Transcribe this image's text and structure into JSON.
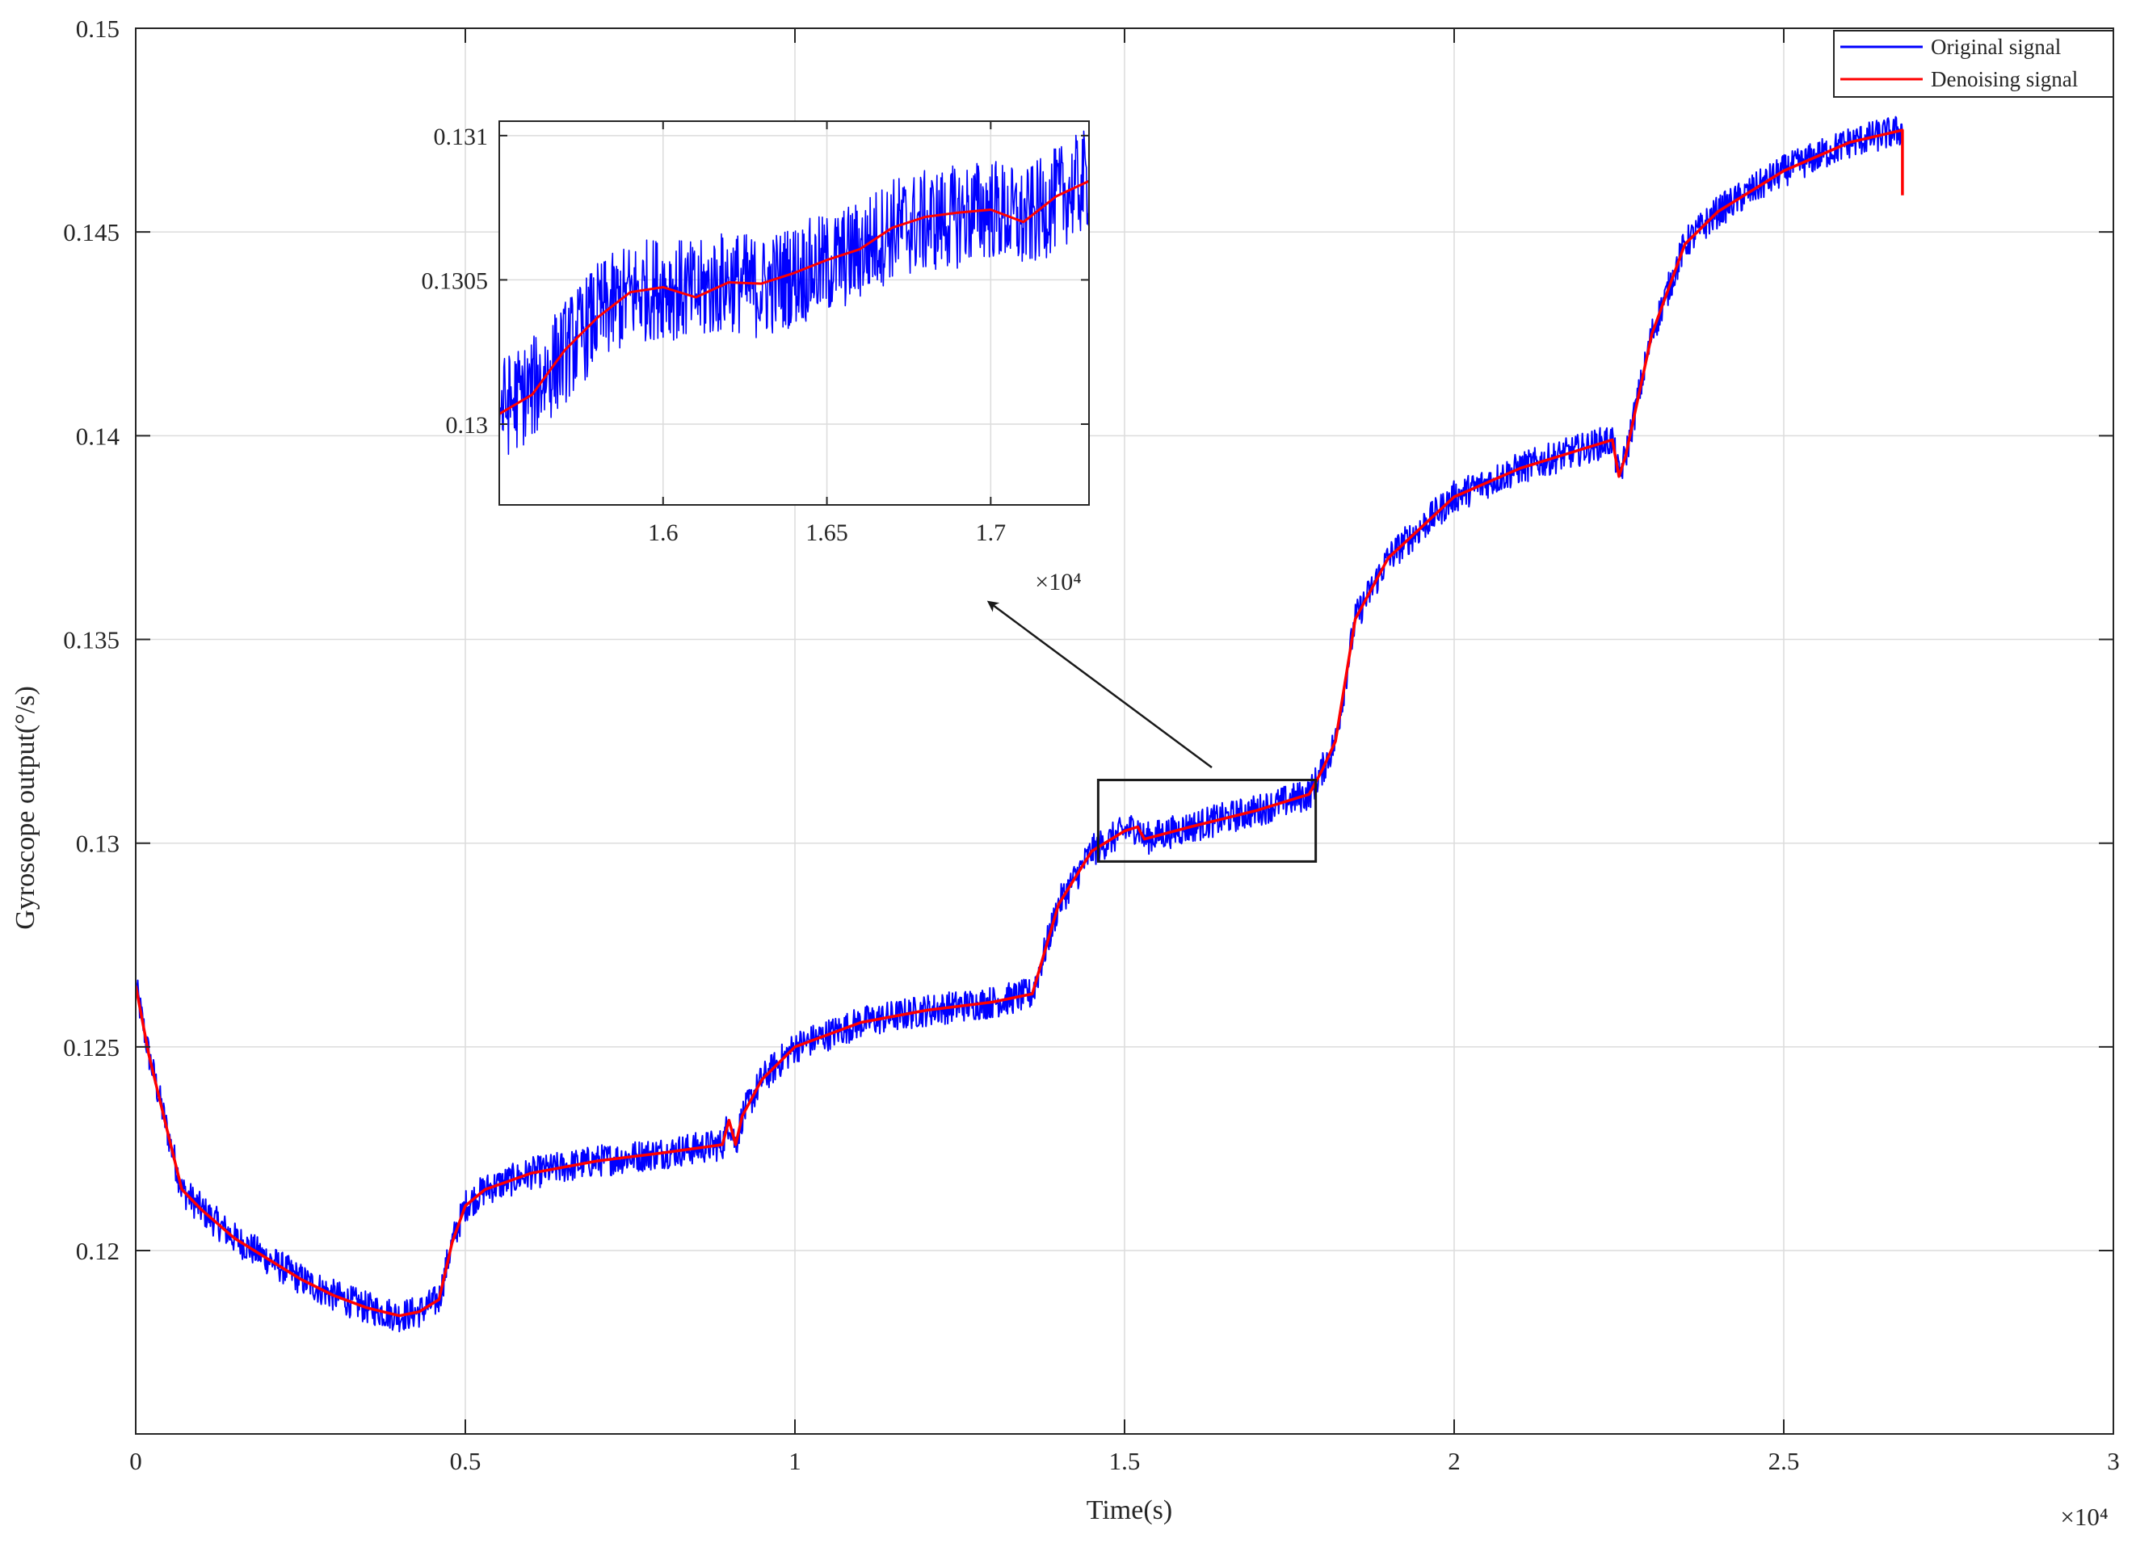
{
  "colors": {
    "original": "#0000ff",
    "denoised": "#ff0000",
    "axes": "#262626",
    "grid": "#dcdcdc",
    "box": "#1a1a1a"
  },
  "chart_data": [
    {
      "type": "line",
      "title": "",
      "xlabel": "Time(s)",
      "ylabel": "Gyroscope output(°/s)",
      "x_multiplier_label": "×10⁴",
      "xlim": [
        0,
        30000
      ],
      "ylim": [
        0.1155,
        0.15
      ],
      "x_ticks": [
        0,
        5000,
        10000,
        15000,
        20000,
        25000,
        30000
      ],
      "x_tick_labels": [
        "0",
        "0.5",
        "1",
        "1.5",
        "2",
        "2.5",
        "3"
      ],
      "y_ticks": [
        0.12,
        0.125,
        0.13,
        0.135,
        0.14,
        0.145,
        0.15
      ],
      "y_tick_labels": [
        "0.12",
        "0.125",
        "0.13",
        "0.135",
        "0.14",
        "0.145",
        "0.15"
      ],
      "grid": true,
      "legend": "top-right",
      "series": [
        {
          "name": "Original signal",
          "color": "#0000ff",
          "noise_amplitude": 0.0004,
          "x": [
            0,
            200,
            500,
            700,
            1000,
            1500,
            2000,
            2500,
            3000,
            3500,
            4000,
            4300,
            4600,
            4800,
            5000,
            5300,
            6000,
            7000,
            8000,
            8900,
            9000,
            9100,
            9200,
            9500,
            10000,
            11000,
            12000,
            13000,
            13600,
            14000,
            14500,
            15000,
            15200,
            15300,
            16000,
            17000,
            17800,
            18000,
            18200,
            18500,
            19000,
            20000,
            21000,
            22000,
            22400,
            22500,
            22600,
            23000,
            23500,
            24000,
            25000,
            26000,
            26800
          ],
          "y": [
            0.1265,
            0.1248,
            0.1228,
            0.1215,
            0.121,
            0.1203,
            0.1198,
            0.1193,
            0.1189,
            0.1186,
            0.1184,
            0.1185,
            0.1188,
            0.1202,
            0.1211,
            0.1215,
            0.1219,
            0.1222,
            0.1224,
            0.1226,
            0.1232,
            0.1226,
            0.1233,
            0.1242,
            0.125,
            0.1256,
            0.1259,
            0.1261,
            0.1263,
            0.1285,
            0.1298,
            0.1303,
            0.1304,
            0.1301,
            0.1304,
            0.1308,
            0.1312,
            0.1318,
            0.1325,
            0.1355,
            0.137,
            0.1385,
            0.1392,
            0.1397,
            0.1399,
            0.139,
            0.1395,
            0.1425,
            0.1447,
            0.1455,
            0.1465,
            0.1472,
            0.1475
          ]
        },
        {
          "name": "Denoising signal",
          "color": "#ff0000",
          "x": [
            0,
            200,
            500,
            700,
            1000,
            1500,
            2000,
            2500,
            3000,
            3500,
            4000,
            4300,
            4600,
            4800,
            5000,
            5300,
            6000,
            7000,
            8000,
            8900,
            9000,
            9100,
            9200,
            9500,
            10000,
            11000,
            12000,
            13000,
            13600,
            14000,
            14500,
            15000,
            15200,
            15300,
            16000,
            17000,
            17800,
            18000,
            18200,
            18500,
            19000,
            20000,
            21000,
            22000,
            22400,
            22500,
            22600,
            23000,
            23500,
            24000,
            25000,
            26000,
            26800,
            26800
          ],
          "y": [
            0.1265,
            0.1248,
            0.1228,
            0.1215,
            0.121,
            0.1203,
            0.1198,
            0.1193,
            0.1189,
            0.1186,
            0.1184,
            0.1185,
            0.1188,
            0.1202,
            0.1211,
            0.1215,
            0.1219,
            0.1222,
            0.1224,
            0.1226,
            0.1232,
            0.1226,
            0.1233,
            0.1242,
            0.125,
            0.1256,
            0.1259,
            0.1261,
            0.1263,
            0.1285,
            0.1298,
            0.1303,
            0.1304,
            0.1301,
            0.1304,
            0.1308,
            0.1312,
            0.1318,
            0.1325,
            0.1355,
            0.137,
            0.1385,
            0.1392,
            0.1397,
            0.1399,
            0.139,
            0.1395,
            0.1425,
            0.1447,
            0.1455,
            0.1465,
            0.1472,
            0.1475,
            0.1459
          ]
        }
      ],
      "zoom_box": {
        "x_range": [
          14600,
          17900
        ],
        "y_range": [
          0.12955,
          0.13155
        ]
      }
    },
    {
      "type": "line",
      "title": "",
      "inset": true,
      "x_multiplier_label": "×10⁴",
      "xlim": [
        15500,
        17300
      ],
      "ylim": [
        0.12972,
        0.13105
      ],
      "x_ticks": [
        16000,
        16500,
        17000
      ],
      "x_tick_labels": [
        "1.6",
        "1.65",
        "1.7"
      ],
      "y_ticks": [
        0.13,
        0.1305,
        0.131
      ],
      "y_tick_labels": [
        "0.13",
        "0.1305",
        "0.131"
      ],
      "grid": true,
      "series": [
        {
          "name": "Original signal",
          "color": "#0000ff",
          "noise_amplitude": 0.00018,
          "x": [
            15500,
            15600,
            15700,
            15800,
            15900,
            16000,
            16100,
            16200,
            16300,
            16400,
            16500,
            16600,
            16700,
            16800,
            16900,
            17000,
            17100,
            17200,
            17300
          ],
          "y": [
            0.13005,
            0.13012,
            0.13025,
            0.13038,
            0.13045,
            0.13048,
            0.13045,
            0.1305,
            0.13047,
            0.13052,
            0.13055,
            0.1306,
            0.13068,
            0.1307,
            0.13072,
            0.13075,
            0.1307,
            0.13078,
            0.13085
          ]
        },
        {
          "name": "Denoising signal",
          "color": "#ff0000",
          "x": [
            15500,
            15600,
            15700,
            15800,
            15900,
            16000,
            16100,
            16200,
            16300,
            16400,
            16500,
            16600,
            16700,
            16800,
            16900,
            17000,
            17100,
            17200,
            17300
          ],
          "y": [
            0.13005,
            0.13012,
            0.13025,
            0.13038,
            0.13045,
            0.13048,
            0.13045,
            0.1305,
            0.13047,
            0.13052,
            0.13055,
            0.1306,
            0.13068,
            0.1307,
            0.13072,
            0.13075,
            0.1307,
            0.13078,
            0.13085
          ]
        }
      ]
    }
  ]
}
